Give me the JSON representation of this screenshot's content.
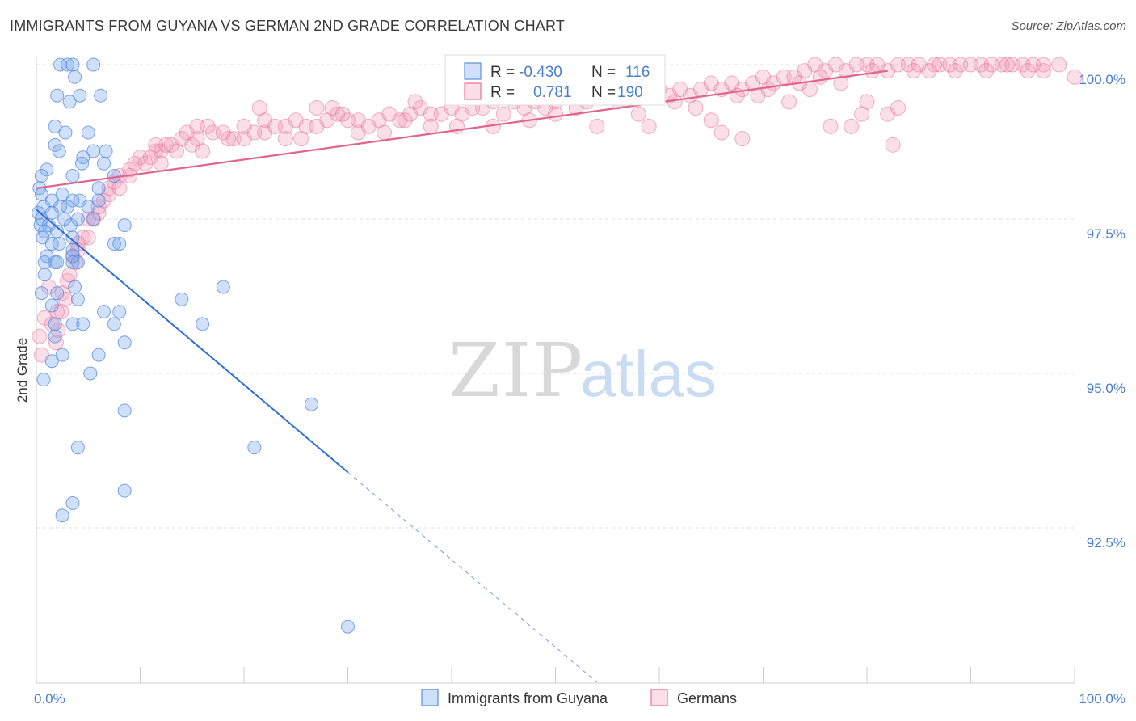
{
  "header": {
    "title": "IMMIGRANTS FROM GUYANA VS GERMAN 2ND GRADE CORRELATION CHART",
    "source": "Source: ZipAtlas.com"
  },
  "colors": {
    "blue": "#5b8fe0",
    "blue_fill": "rgba(120,165,235,0.35)",
    "pink": "#e8709a",
    "pink_fill": "rgba(240,150,180,0.30)",
    "tick_text": "#4a7fd0",
    "grid": "#dddddd"
  },
  "legend": {
    "rows": [
      {
        "r_label": "R =",
        "r_value": "-0.430",
        "n_label": "N =",
        "n_value": "116"
      },
      {
        "r_label": "R =",
        "r_value": "0.781",
        "n_label": "N =",
        "n_value": "190"
      }
    ]
  },
  "watermark": {
    "zip": "ZIP",
    "atlas": "atlas"
  },
  "chart_data": {
    "type": "scatter",
    "title": "IMMIGRANTS FROM GUYANA VS GERMAN 2ND GRADE CORRELATION CHART",
    "xlabel": "",
    "ylabel": "2nd Grade",
    "xlim": [
      0,
      100
    ],
    "ylim": [
      90.0,
      100.3
    ],
    "x_tick_labels": [
      "0.0%",
      "100.0%"
    ],
    "y_ticks": [
      92.5,
      95.0,
      97.5,
      100.0
    ],
    "y_tick_labels": [
      "92.5%",
      "95.0%",
      "97.5%",
      "100.0%"
    ],
    "series": [
      {
        "name": "Immigrants from Guyana",
        "color": "blue",
        "R": -0.43,
        "N": 116,
        "trend": {
          "x0": 0.0,
          "y0": 97.65,
          "x1": 30.0,
          "y1": 93.4,
          "dash_to_x": 54.0,
          "dash_to_y": 90.0
        },
        "points": [
          [
            2.3,
            100.0
          ],
          [
            3.0,
            100.0
          ],
          [
            3.5,
            100.0
          ],
          [
            5.5,
            100.0
          ],
          [
            3.7,
            99.8
          ],
          [
            2.0,
            99.5
          ],
          [
            4.2,
            99.5
          ],
          [
            6.2,
            99.5
          ],
          [
            3.2,
            99.4
          ],
          [
            1.8,
            99.0
          ],
          [
            2.8,
            98.9
          ],
          [
            5.0,
            98.9
          ],
          [
            1.8,
            98.7
          ],
          [
            2.2,
            98.6
          ],
          [
            5.5,
            98.6
          ],
          [
            6.7,
            98.6
          ],
          [
            4.5,
            98.5
          ],
          [
            6.5,
            98.4
          ],
          [
            4.4,
            98.4
          ],
          [
            3.5,
            98.2
          ],
          [
            1.0,
            98.3
          ],
          [
            0.5,
            98.2
          ],
          [
            7.5,
            98.2
          ],
          [
            0.3,
            98.0
          ],
          [
            6.0,
            98.0
          ],
          [
            0.5,
            97.9
          ],
          [
            2.5,
            97.9
          ],
          [
            3.5,
            97.8
          ],
          [
            4.2,
            97.8
          ],
          [
            6.0,
            97.8
          ],
          [
            1.5,
            97.8
          ],
          [
            0.7,
            97.7
          ],
          [
            2.3,
            97.7
          ],
          [
            3.0,
            97.7
          ],
          [
            5.0,
            97.7
          ],
          [
            0.2,
            97.6
          ],
          [
            1.5,
            97.6
          ],
          [
            0.5,
            97.5
          ],
          [
            2.7,
            97.5
          ],
          [
            4.0,
            97.5
          ],
          [
            5.5,
            97.5
          ],
          [
            0.4,
            97.4
          ],
          [
            1.2,
            97.4
          ],
          [
            3.3,
            97.4
          ],
          [
            8.5,
            97.4
          ],
          [
            0.8,
            97.3
          ],
          [
            2.0,
            97.3
          ],
          [
            3.5,
            97.2
          ],
          [
            0.6,
            97.2
          ],
          [
            1.5,
            97.1
          ],
          [
            2.2,
            97.1
          ],
          [
            7.5,
            97.1
          ],
          [
            8.0,
            97.1
          ],
          [
            3.5,
            97.0
          ],
          [
            1.0,
            96.9
          ],
          [
            3.5,
            96.9
          ],
          [
            0.8,
            96.8
          ],
          [
            1.8,
            96.8
          ],
          [
            2.0,
            96.8
          ],
          [
            3.5,
            96.8
          ],
          [
            4.0,
            96.8
          ],
          [
            0.8,
            96.6
          ],
          [
            18.0,
            96.4
          ],
          [
            0.5,
            96.3
          ],
          [
            2.0,
            96.3
          ],
          [
            3.7,
            96.4
          ],
          [
            4.0,
            96.2
          ],
          [
            1.5,
            96.1
          ],
          [
            14.0,
            96.2
          ],
          [
            6.5,
            96.0
          ],
          [
            8.0,
            96.0
          ],
          [
            1.8,
            95.8
          ],
          [
            3.5,
            95.8
          ],
          [
            4.5,
            95.8
          ],
          [
            7.5,
            95.8
          ],
          [
            16.0,
            95.8
          ],
          [
            1.8,
            95.6
          ],
          [
            8.5,
            95.5
          ],
          [
            2.5,
            95.3
          ],
          [
            6.0,
            95.3
          ],
          [
            1.5,
            95.2
          ],
          [
            5.2,
            95.0
          ],
          [
            0.7,
            94.9
          ],
          [
            26.5,
            94.5
          ],
          [
            8.5,
            94.4
          ],
          [
            4.0,
            93.8
          ],
          [
            21.0,
            93.8
          ],
          [
            8.5,
            93.1
          ],
          [
            3.5,
            92.9
          ],
          [
            2.5,
            92.7
          ],
          [
            30.0,
            90.9
          ]
        ]
      },
      {
        "name": "Germans",
        "color": "pink",
        "R": 0.781,
        "N": 190,
        "trend": {
          "x0": 0.0,
          "y0": 98.0,
          "x1": 82.0,
          "y1": 99.9
        },
        "points": [
          [
            0.3,
            95.6
          ],
          [
            0.5,
            95.3
          ],
          [
            1.5,
            95.8
          ],
          [
            2.0,
            96.0
          ],
          [
            2.5,
            96.3
          ],
          [
            3.0,
            96.5
          ],
          [
            3.8,
            96.8
          ],
          [
            4.0,
            97.0
          ],
          [
            5.0,
            97.2
          ],
          [
            5.5,
            97.5
          ],
          [
            6.0,
            97.6
          ],
          [
            6.5,
            97.8
          ],
          [
            7.0,
            98.0
          ],
          [
            7.5,
            98.1
          ],
          [
            8.0,
            98.2
          ],
          [
            9.0,
            98.3
          ],
          [
            9.5,
            98.4
          ],
          [
            10.0,
            98.5
          ],
          [
            11.0,
            98.5
          ],
          [
            11.5,
            98.6
          ],
          [
            12.0,
            98.6
          ],
          [
            12.5,
            98.7
          ],
          [
            13.0,
            98.7
          ],
          [
            14.0,
            98.8
          ],
          [
            15.0,
            98.7
          ],
          [
            15.5,
            98.8
          ],
          [
            16.0,
            98.6
          ],
          [
            17.0,
            98.9
          ],
          [
            18.0,
            98.9
          ],
          [
            19.0,
            98.8
          ],
          [
            20.0,
            98.8
          ],
          [
            21.0,
            98.9
          ],
          [
            22.0,
            98.9
          ],
          [
            23.0,
            99.0
          ],
          [
            24.0,
            99.0
          ],
          [
            25.0,
            99.1
          ],
          [
            25.5,
            98.8
          ],
          [
            26.0,
            99.0
          ],
          [
            27.0,
            99.0
          ],
          [
            28.0,
            99.1
          ],
          [
            29.0,
            99.2
          ],
          [
            30.0,
            99.1
          ],
          [
            31.0,
            99.1
          ],
          [
            32.0,
            99.0
          ],
          [
            33.0,
            99.1
          ],
          [
            34.0,
            99.2
          ],
          [
            35.0,
            99.1
          ],
          [
            36.0,
            99.2
          ],
          [
            37.0,
            99.3
          ],
          [
            38.0,
            99.2
          ],
          [
            39.0,
            99.2
          ],
          [
            40.0,
            99.3
          ],
          [
            41.0,
            99.2
          ],
          [
            42.0,
            99.3
          ],
          [
            43.0,
            99.3
          ],
          [
            44.0,
            99.4
          ],
          [
            45.0,
            99.2
          ],
          [
            46.0,
            99.4
          ],
          [
            47.0,
            99.3
          ],
          [
            48.0,
            99.4
          ],
          [
            49.0,
            99.3
          ],
          [
            50.0,
            99.4
          ],
          [
            51.0,
            99.5
          ],
          [
            52.0,
            99.3
          ],
          [
            53.0,
            99.4
          ],
          [
            54.0,
            99.6
          ],
          [
            55.0,
            99.5
          ],
          [
            56.0,
            99.4
          ],
          [
            57.0,
            99.5
          ],
          [
            58.0,
            99.6
          ],
          [
            59.0,
            99.5
          ],
          [
            60.0,
            99.6
          ],
          [
            61.0,
            99.5
          ],
          [
            62.0,
            99.6
          ],
          [
            63.0,
            99.5
          ],
          [
            64.0,
            99.6
          ],
          [
            65.0,
            99.7
          ],
          [
            66.0,
            99.6
          ],
          [
            67.0,
            99.7
          ],
          [
            68.0,
            99.6
          ],
          [
            69.0,
            99.7
          ],
          [
            70.0,
            99.8
          ],
          [
            71.0,
            99.7
          ],
          [
            72.0,
            99.8
          ],
          [
            73.0,
            99.8
          ],
          [
            74.0,
            99.9
          ],
          [
            75.0,
            100.0
          ],
          [
            76.0,
            99.9
          ],
          [
            77.0,
            100.0
          ],
          [
            78.0,
            99.9
          ],
          [
            79.0,
            100.0
          ],
          [
            80.0,
            100.0
          ],
          [
            81.0,
            100.0
          ],
          [
            82.0,
            99.9
          ],
          [
            83.0,
            100.0
          ],
          [
            84.0,
            100.0
          ],
          [
            85.0,
            100.0
          ],
          [
            86.0,
            99.9
          ],
          [
            87.0,
            100.0
          ],
          [
            88.0,
            100.0
          ],
          [
            89.0,
            100.0
          ],
          [
            90.0,
            100.0
          ],
          [
            91.0,
            100.0
          ],
          [
            92.0,
            100.0
          ],
          [
            93.0,
            100.0
          ],
          [
            94.0,
            100.0
          ],
          [
            95.0,
            100.0
          ],
          [
            96.0,
            100.0
          ],
          [
            97.0,
            100.0
          ],
          [
            100.0,
            99.8
          ],
          [
            27.0,
            99.3
          ],
          [
            33.5,
            98.9
          ],
          [
            40.5,
            99.0
          ],
          [
            47.5,
            99.1
          ],
          [
            54.0,
            99.0
          ],
          [
            59.0,
            99.0
          ],
          [
            63.5,
            99.3
          ],
          [
            66.0,
            98.9
          ],
          [
            69.5,
            99.5
          ],
          [
            72.5,
            99.4
          ],
          [
            74.5,
            99.6
          ],
          [
            76.5,
            99.0
          ],
          [
            78.5,
            99.0
          ],
          [
            79.5,
            99.2
          ],
          [
            82.0,
            99.2
          ],
          [
            83.0,
            99.3
          ],
          [
            80.0,
            99.4
          ],
          [
            75.5,
            99.8
          ],
          [
            65.0,
            99.1
          ],
          [
            58.0,
            99.2
          ],
          [
            50.0,
            99.2
          ],
          [
            44.0,
            99.0
          ],
          [
            38.0,
            99.0
          ],
          [
            36.5,
            99.4
          ],
          [
            31.0,
            98.9
          ],
          [
            29.5,
            99.2
          ],
          [
            24.0,
            98.8
          ],
          [
            22.0,
            99.1
          ],
          [
            20.0,
            99.0
          ],
          [
            18.5,
            98.8
          ],
          [
            16.5,
            99.0
          ],
          [
            14.5,
            98.9
          ],
          [
            13.5,
            98.6
          ],
          [
            12.0,
            98.4
          ],
          [
            10.5,
            98.4
          ],
          [
            9.0,
            98.2
          ],
          [
            8.0,
            98.0
          ],
          [
            7.0,
            97.9
          ],
          [
            6.0,
            97.7
          ],
          [
            5.0,
            97.5
          ],
          [
            4.5,
            97.2
          ],
          [
            4.0,
            97.1
          ],
          [
            3.5,
            96.9
          ],
          [
            3.2,
            96.6
          ],
          [
            2.8,
            96.2
          ],
          [
            2.4,
            96.0
          ],
          [
            2.1,
            95.7
          ],
          [
            1.9,
            95.5
          ],
          [
            0.8,
            95.9
          ],
          [
            1.2,
            96.4
          ],
          [
            61.5,
            99.4
          ],
          [
            67.5,
            99.5
          ],
          [
            70.5,
            99.6
          ],
          [
            73.5,
            99.7
          ],
          [
            77.5,
            99.7
          ],
          [
            80.5,
            99.9
          ],
          [
            84.5,
            99.9
          ],
          [
            86.5,
            100.0
          ],
          [
            88.5,
            99.9
          ],
          [
            91.5,
            99.9
          ],
          [
            93.5,
            100.0
          ],
          [
            95.5,
            99.9
          ],
          [
            97.0,
            99.9
          ],
          [
            98.5,
            100.0
          ],
          [
            82.5,
            98.7
          ],
          [
            68.0,
            98.8
          ],
          [
            57.5,
            99.6
          ],
          [
            49.0,
            99.6
          ],
          [
            43.5,
            99.5
          ],
          [
            35.5,
            99.1
          ],
          [
            28.5,
            99.3
          ],
          [
            21.5,
            99.3
          ],
          [
            15.5,
            99.0
          ],
          [
            11.5,
            98.7
          ]
        ]
      }
    ]
  },
  "bottom_legend": {
    "items": [
      {
        "label": "Immigrants from Guyana"
      },
      {
        "label": "Germans"
      }
    ]
  }
}
